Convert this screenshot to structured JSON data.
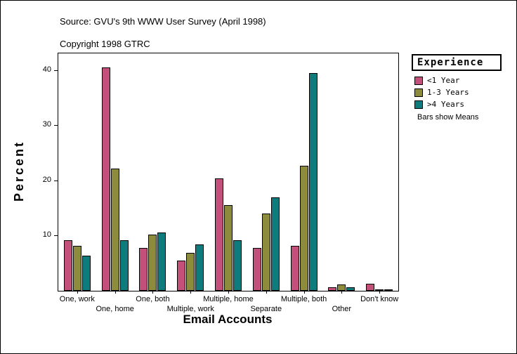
{
  "page": {
    "source_line": "Source: GVU's 9th WWW User Survey (April 1998)",
    "copyright_line": "Copyright 1998 GTRC"
  },
  "chart_data": {
    "type": "bar",
    "title": "",
    "xlabel": "Email Accounts",
    "ylabel": "Percent",
    "ylim": [
      0,
      43
    ],
    "yticks": [
      10,
      20,
      30,
      40
    ],
    "grid": false,
    "legend_position": "right",
    "legend_title": "Experience",
    "legend_note": "Bars show Means",
    "categories": [
      "One, work",
      "One, home",
      "One, both",
      "Multiple, work",
      "Multiple, home",
      "Separate",
      "Multiple, both",
      "Other",
      "Don't know"
    ],
    "series": [
      {
        "name": "<1 Year",
        "color": "#C2507A",
        "values": [
          9.2,
          40.4,
          7.7,
          5.5,
          20.4,
          7.8,
          8.1,
          0.7,
          1.3
        ]
      },
      {
        "name": "1-3 Years",
        "color": "#8C8C3C",
        "values": [
          8.2,
          22.2,
          10.2,
          6.9,
          15.5,
          14.0,
          22.6,
          1.1,
          0.2
        ]
      },
      {
        "name": ">4 Years",
        "color": "#0E7C7C",
        "values": [
          6.4,
          9.1,
          10.5,
          8.4,
          9.1,
          16.9,
          39.5,
          0.7,
          0.2
        ]
      }
    ]
  }
}
